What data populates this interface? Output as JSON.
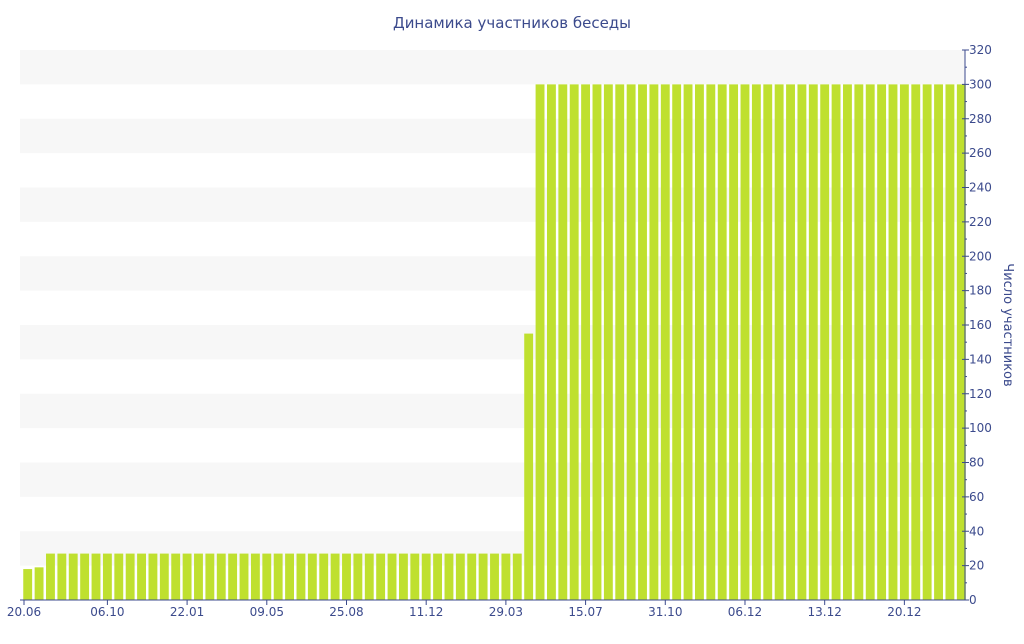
{
  "chart_data": {
    "type": "bar",
    "title": "Динамика участников беседы",
    "ylabel": "Число участников",
    "xlabel": "",
    "ylim": [
      0,
      320
    ],
    "yticks": [
      0,
      20,
      40,
      60,
      80,
      100,
      120,
      140,
      160,
      180,
      200,
      220,
      240,
      260,
      280,
      300,
      320
    ],
    "xtick_labels": [
      "20.06",
      "06.10",
      "22.01",
      "09.05",
      "25.08",
      "11.12",
      "29.03",
      "15.07",
      "31.10",
      "06.12",
      "13.12",
      "20.12"
    ],
    "grid": "horizontal bands",
    "y_axis_position": "right",
    "values": [
      18,
      19,
      27,
      27,
      27,
      27,
      27,
      27,
      27,
      27,
      27,
      27,
      27,
      27,
      27,
      27,
      27,
      27,
      27,
      27,
      27,
      27,
      27,
      27,
      27,
      27,
      27,
      27,
      27,
      27,
      27,
      27,
      27,
      27,
      27,
      27,
      27,
      27,
      27,
      27,
      27,
      27,
      27,
      27,
      155,
      300,
      300,
      300,
      300,
      300,
      300,
      300,
      300,
      300,
      300,
      300,
      300,
      300,
      300,
      300,
      300,
      300,
      300,
      300,
      300,
      300,
      300,
      300,
      300,
      300,
      300,
      300,
      300,
      300,
      300,
      300,
      300,
      300,
      300,
      300,
      300,
      300,
      300
    ]
  },
  "colors": {
    "bar": "#bfe02f",
    "band": "#f7f7f7",
    "text": "#3b4a8c",
    "axis": "#3b4a8c"
  }
}
